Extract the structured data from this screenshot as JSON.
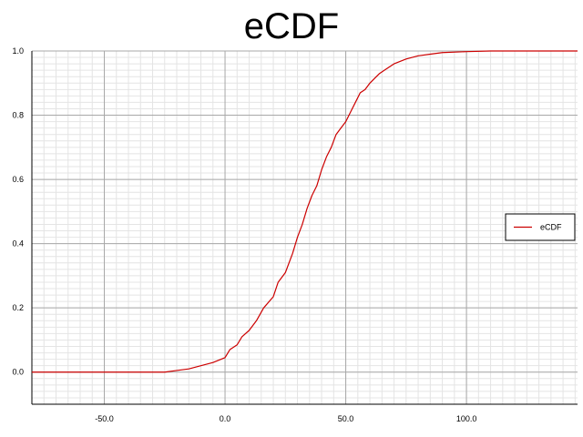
{
  "chart_data": {
    "type": "line",
    "title": "eCDF",
    "xlabel": "",
    "ylabel": "",
    "xlim": [
      -80,
      146
    ],
    "ylim": [
      -0.1,
      1.0
    ],
    "grid": true,
    "legend_position": "right",
    "x_ticks": [
      -50,
      0,
      50,
      100
    ],
    "x_tick_labels": [
      "-50.0",
      "0.0",
      "50.0",
      "100.0"
    ],
    "y_ticks": [
      0,
      0.2,
      0.4,
      0.6,
      0.8,
      1.0
    ],
    "y_tick_labels": [
      "0.0",
      "0.2",
      "0.4",
      "0.6",
      "0.8",
      "1.0"
    ],
    "series": [
      {
        "name": "eCDF",
        "color": "#cc0000",
        "x": [
          -80,
          -25,
          -20,
          -15,
          -10,
          -5,
          0,
          2,
          5,
          7,
          10,
          13,
          16,
          20,
          22,
          25,
          28,
          30,
          32,
          34,
          36,
          38,
          40,
          42,
          44,
          46,
          48,
          50,
          52,
          54,
          56,
          58,
          60,
          62,
          64,
          66,
          68,
          70,
          75,
          80,
          85,
          90,
          100,
          110,
          125,
          146
        ],
        "y": [
          0.0,
          0.0,
          0.005,
          0.01,
          0.02,
          0.03,
          0.045,
          0.07,
          0.085,
          0.11,
          0.13,
          0.16,
          0.2,
          0.235,
          0.28,
          0.31,
          0.37,
          0.42,
          0.46,
          0.51,
          0.55,
          0.58,
          0.63,
          0.67,
          0.7,
          0.74,
          0.76,
          0.78,
          0.81,
          0.84,
          0.87,
          0.88,
          0.9,
          0.915,
          0.93,
          0.94,
          0.95,
          0.96,
          0.975,
          0.985,
          0.99,
          0.995,
          0.998,
          1.0,
          1.0,
          1.0
        ]
      }
    ]
  }
}
